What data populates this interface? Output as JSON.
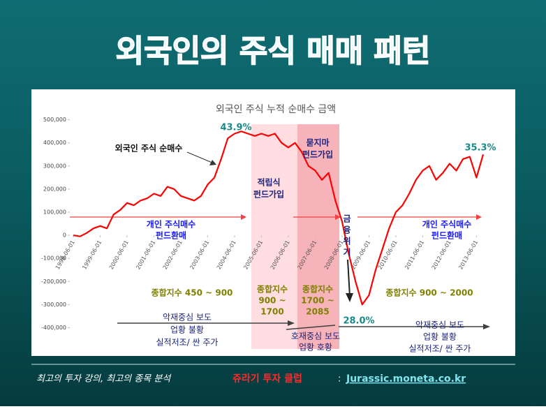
{
  "slide": {
    "title": "외국인의 주식 매매 패턴",
    "footer": {
      "lead": "최고의 투자 강의, 최고의 종목 분석",
      "club": "쥬라기 투자 클럽",
      "sep": ":",
      "url": "Jurassic.moneta.co.kr"
    }
  },
  "chart_data": {
    "type": "line",
    "title": "외국인 주식 누적 순매수 금액",
    "x": [
      "1998-06-01",
      "1998-09-01",
      "1998-12-01",
      "1999-03-01",
      "1999-06-01",
      "1999-09-01",
      "1999-12-01",
      "2000-03-01",
      "2000-06-01",
      "2000-09-01",
      "2000-12-01",
      "2001-03-01",
      "2001-06-01",
      "2001-09-01",
      "2001-12-01",
      "2002-03-01",
      "2002-06-01",
      "2002-09-01",
      "2002-12-01",
      "2003-03-01",
      "2003-06-01",
      "2003-09-01",
      "2003-12-01",
      "2004-03-01",
      "2004-06-01",
      "2004-09-01",
      "2004-12-01",
      "2005-03-01",
      "2005-06-01",
      "2005-09-01",
      "2005-12-01",
      "2006-03-01",
      "2006-06-01",
      "2006-09-01",
      "2006-12-01",
      "2007-03-01",
      "2007-06-01",
      "2007-09-01",
      "2007-12-01",
      "2008-03-01",
      "2008-06-01",
      "2008-09-01",
      "2008-12-01",
      "2009-03-01",
      "2009-06-01",
      "2009-09-01",
      "2009-12-01",
      "2010-03-01",
      "2010-06-01",
      "2010-09-01",
      "2010-12-01",
      "2011-03-01",
      "2011-06-01",
      "2011-09-01",
      "2011-12-01",
      "2012-03-01",
      "2012-06-01",
      "2012-09-01",
      "2012-12-01",
      "2013-03-01",
      "2013-06-01",
      "2013-09-01"
    ],
    "series": [
      {
        "name": "외국인 주식 순매수",
        "color": "#ff0000",
        "values": [
          0,
          -5000,
          10000,
          30000,
          40000,
          30000,
          90000,
          110000,
          140000,
          130000,
          150000,
          160000,
          180000,
          170000,
          210000,
          200000,
          170000,
          160000,
          150000,
          170000,
          220000,
          250000,
          330000,
          420000,
          440000,
          450000,
          440000,
          430000,
          440000,
          430000,
          440000,
          400000,
          380000,
          400000,
          360000,
          300000,
          280000,
          240000,
          270000,
          150000,
          60000,
          -80000,
          -200000,
          -300000,
          -260000,
          -150000,
          -60000,
          30000,
          100000,
          130000,
          180000,
          240000,
          280000,
          300000,
          240000,
          270000,
          310000,
          280000,
          330000,
          340000,
          250000,
          350000
        ]
      }
    ],
    "xlim": [
      "1998-06-01",
      "2013-09-01"
    ],
    "xticks": [
      "1998-06-01",
      "1999-06-01",
      "2000-06-01",
      "2001-06-01",
      "2002-06-01",
      "2003-06-01",
      "2004-06-01",
      "2005-06-01",
      "2006-06-01",
      "2007-06-01",
      "2008-06-01",
      "2009-06-01",
      "2010-06-01",
      "2011-06-01",
      "2012-06-01",
      "2013-06-01"
    ],
    "ylim": [
      -450000,
      520000
    ],
    "yticks": [
      {
        "value": 500000,
        "label": "500,000"
      },
      {
        "value": 400000,
        "label": "400,000"
      },
      {
        "value": 300000,
        "label": "300,000"
      },
      {
        "value": 200000,
        "label": "200,000"
      },
      {
        "value": 100000,
        "label": "100,000"
      },
      0,
      {
        "value": -100000,
        "label": "-100,000"
      },
      {
        "value": -200000,
        "label": "-200,000"
      },
      {
        "value": -300000,
        "label": "-300,000"
      },
      {
        "value": -400000,
        "label": "-400,000"
      }
    ],
    "grid": false,
    "annotations": [
      "43.9%",
      "35.3%",
      "28.0%",
      "적립식",
      "펀드가입",
      "묻지마",
      "펀드가입",
      "금",
      "융",
      "위",
      "기",
      "개인 주식매수",
      "펀드환매",
      "개인 주식매수",
      "펀드환매",
      "종합지수 450 ~ 900",
      "종합지수",
      "900 ~",
      "1700",
      "종합지수",
      "1700 ~",
      "2085",
      "종합지수 900 ~ 2000",
      "악재중심 보도",
      "업황 불황",
      "실적저조/ 싼 주가",
      "호재중심 보도",
      "업황 호황",
      "악재중심 보도",
      "업황 불황",
      "실적저조/ 싼 주가"
    ]
  }
}
